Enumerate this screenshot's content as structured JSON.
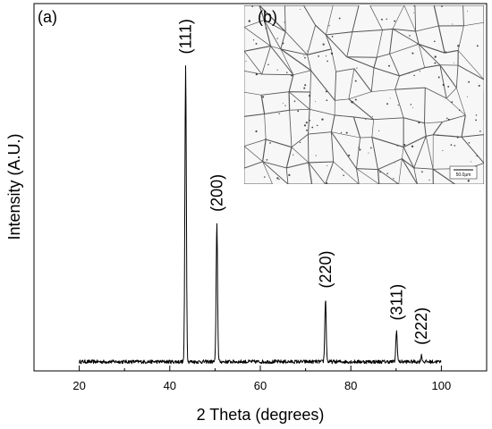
{
  "chart_data": {
    "type": "line",
    "panel_label_main": "(a)",
    "panel_label_inset": "(b)",
    "xlabel": "2 Theta (degrees)",
    "ylabel": "Intensity (A.U.)",
    "xlim": [
      10,
      110
    ],
    "ylim": [
      0,
      1.2
    ],
    "xticks": [
      20,
      40,
      60,
      80,
      100
    ],
    "x_start": 20,
    "x_end": 100,
    "baseline": 0.03,
    "peaks": [
      {
        "label": "(111)",
        "x": 43.5,
        "y": 1.0
      },
      {
        "label": "(200)",
        "x": 50.4,
        "y": 0.485
      },
      {
        "label": "(220)",
        "x": 74.4,
        "y": 0.235
      },
      {
        "label": "(311)",
        "x": 90.1,
        "y": 0.13
      },
      {
        "label": "(222)",
        "x": 95.6,
        "y": 0.05
      }
    ],
    "inset_scale_bar": "50.0μm"
  }
}
